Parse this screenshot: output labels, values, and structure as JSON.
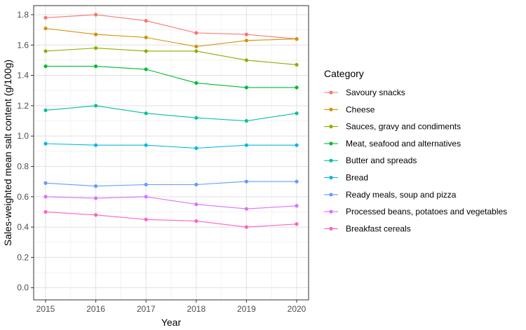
{
  "chart_data": {
    "type": "line",
    "title": "",
    "xlabel": "Year",
    "ylabel": "Sales-weighted mean salt content (g/100g)",
    "x": [
      2015,
      2016,
      2017,
      2018,
      2019,
      2020
    ],
    "x_tick_labels": [
      "2015",
      "2016",
      "2017",
      "2018",
      "2019",
      "2020"
    ],
    "ylim": [
      -0.08,
      1.86
    ],
    "y_ticks": [
      0.0,
      0.2,
      0.4,
      0.6,
      0.8,
      1.0,
      1.2,
      1.4,
      1.6,
      1.8
    ],
    "y_tick_labels": [
      "0.0",
      "0.2",
      "0.4",
      "0.6",
      "0.8",
      "1.0",
      "1.2",
      "1.4",
      "1.6",
      "1.8"
    ],
    "grid": true,
    "legend_title": "Category",
    "legend_position": "right",
    "series": [
      {
        "name": "Savoury snacks",
        "color": "#F8766D",
        "values": [
          1.78,
          1.8,
          1.76,
          1.68,
          1.67,
          1.64
        ]
      },
      {
        "name": "Cheese",
        "color": "#D39200",
        "values": [
          1.71,
          1.67,
          1.65,
          1.59,
          1.63,
          1.64
        ]
      },
      {
        "name": "Sauces, gravy and condiments",
        "color": "#93AA00",
        "values": [
          1.56,
          1.58,
          1.56,
          1.56,
          1.5,
          1.47
        ]
      },
      {
        "name": "Meat, seafood and alternatives",
        "color": "#00BA38",
        "values": [
          1.46,
          1.46,
          1.44,
          1.35,
          1.32,
          1.32
        ]
      },
      {
        "name": "Butter and spreads",
        "color": "#00C19F",
        "values": [
          1.17,
          1.2,
          1.15,
          1.12,
          1.1,
          1.15
        ]
      },
      {
        "name": "Bread",
        "color": "#00B9E3",
        "values": [
          0.95,
          0.94,
          0.94,
          0.92,
          0.94,
          0.94
        ]
      },
      {
        "name": "Ready meals, soup and pizza",
        "color": "#619CFF",
        "values": [
          0.69,
          0.67,
          0.68,
          0.68,
          0.7,
          0.7
        ]
      },
      {
        "name": "Processed beans, potatoes and vegetables",
        "color": "#DB72FB",
        "values": [
          0.6,
          0.59,
          0.6,
          0.55,
          0.52,
          0.54
        ]
      },
      {
        "name": "Breakfast cereals",
        "color": "#FF61C3",
        "values": [
          0.5,
          0.48,
          0.45,
          0.44,
          0.4,
          0.42
        ]
      }
    ]
  }
}
